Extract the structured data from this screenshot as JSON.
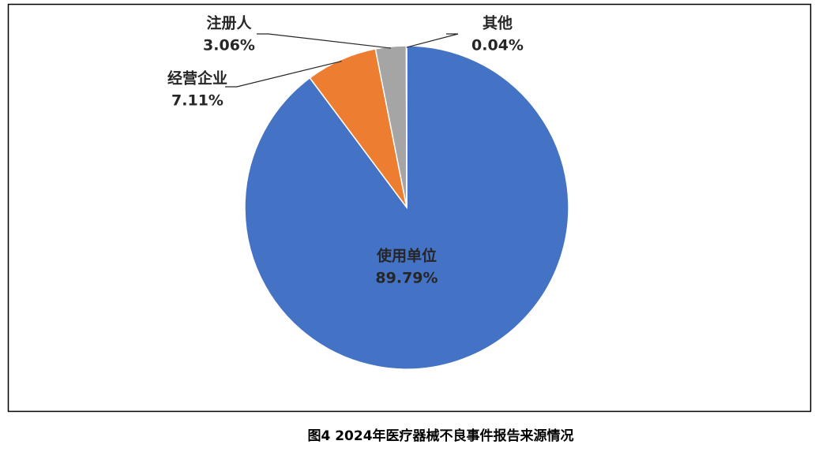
{
  "chart_data": {
    "type": "pie",
    "title": "图4 2024年医疗器械不良事件报告来源情况",
    "categories": [
      "使用单位",
      "经营企业",
      "注册人",
      "其他"
    ],
    "values": [
      89.79,
      7.11,
      3.06,
      0.04
    ],
    "value_labels": [
      "89.79%",
      "7.11%",
      "3.06%",
      "0.04%"
    ],
    "colors": [
      "#4472c4",
      "#ed7d31",
      "#a5a5a5",
      "#ffc000"
    ]
  }
}
